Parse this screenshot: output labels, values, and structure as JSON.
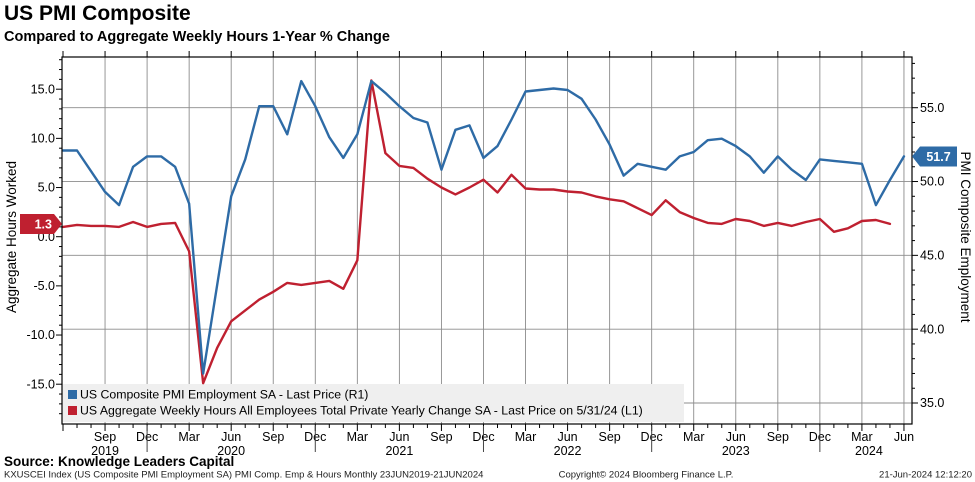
{
  "header": {
    "title": "US PMI Composite",
    "subtitle": "Compared to Aggregate Weekly Hours 1-Year % Change"
  },
  "chart_data": {
    "type": "line",
    "x_start": "Jun 2019",
    "x_interval": "monthly",
    "x_end": "Jun 2024",
    "grid": "on",
    "legend_position": "bottom-left",
    "series": [
      {
        "name": "US Composite PMI Employment SA - Last Price (R1)",
        "axis": "right",
        "color": "#2e6ba6",
        "last_price_label": "51.7",
        "values": [
          52.1,
          52.1,
          50.7,
          49.3,
          48.4,
          51.0,
          51.7,
          51.7,
          51.0,
          48.5,
          37.0,
          43.0,
          49.0,
          51.5,
          55.1,
          55.1,
          53.2,
          56.8,
          55.1,
          53.0,
          51.6,
          53.2,
          56.8,
          56.0,
          55.1,
          54.3,
          54.0,
          50.8,
          53.5,
          53.8,
          51.6,
          52.4,
          54.2,
          56.1,
          56.2,
          56.3,
          56.2,
          55.6,
          54.2,
          52.5,
          50.4,
          51.2,
          51.0,
          50.8,
          51.7,
          52.0,
          52.8,
          52.9,
          52.4,
          51.7,
          50.6,
          51.7,
          50.8,
          50.1,
          51.5,
          51.4,
          51.3,
          51.2,
          48.4,
          50.1,
          51.7
        ]
      },
      {
        "name": "US Aggregate Weekly Hours All Employees Total Private Yearly Change SA - Last Price on 5/31/24 (L1)",
        "axis": "left",
        "color": "#bf2030",
        "last_price_label": "1.3",
        "values": [
          1.0,
          1.2,
          1.1,
          1.1,
          1.0,
          1.5,
          1.0,
          1.3,
          1.4,
          -1.5,
          -14.9,
          -11.3,
          -8.6,
          -7.5,
          -6.4,
          -5.6,
          -4.7,
          -4.9,
          -4.7,
          -4.5,
          -5.3,
          -2.4,
          15.9,
          8.5,
          7.2,
          7.0,
          5.9,
          5.0,
          4.3,
          5.0,
          5.8,
          4.5,
          6.3,
          4.9,
          4.8,
          4.8,
          4.6,
          4.5,
          4.1,
          3.8,
          3.6,
          2.9,
          2.2,
          3.7,
          2.5,
          1.9,
          1.4,
          1.3,
          1.8,
          1.6,
          1.1,
          1.4,
          1.1,
          1.5,
          1.8,
          0.5,
          0.85,
          1.6,
          1.7,
          1.3
        ]
      }
    ],
    "left_axis": {
      "title": "Aggregate Hours Worked",
      "tick_labels": [
        "15.0",
        "10.0",
        "5.0",
        "0.0",
        "-5.0",
        "-10.0",
        "-15.0"
      ],
      "tick_values": [
        15,
        10,
        5,
        0,
        -5,
        -10,
        -15
      ],
      "range": [
        -19,
        18.3
      ]
    },
    "right_axis": {
      "title": "PMI Composite Employment",
      "tick_labels": [
        "55.0",
        "50.0",
        "45.0",
        "40.0",
        "35.0"
      ],
      "tick_values": [
        55,
        50,
        45,
        40,
        35
      ],
      "range": [
        33.6,
        58.4
      ]
    },
    "x_axis": {
      "quarter_tick_indices": [
        3,
        6,
        9,
        12,
        15,
        18,
        21,
        24,
        27,
        30,
        33,
        36,
        39,
        42,
        45,
        48,
        51,
        54,
        57,
        60
      ],
      "quarter_labels": [
        "Sep",
        "Dec",
        "Mar",
        "Jun",
        "Sep",
        "Dec",
        "Mar",
        "Jun",
        "Sep",
        "Dec",
        "Mar",
        "Jun",
        "Sep",
        "Dec",
        "Mar",
        "Jun",
        "Sep",
        "Dec",
        "Mar",
        "Jun"
      ],
      "year_labels": [
        {
          "label": "2019",
          "idx": 3
        },
        {
          "label": "2020",
          "idx": 12
        },
        {
          "label": "2021",
          "idx": 24
        },
        {
          "label": "2022",
          "idx": 36
        },
        {
          "label": "2023",
          "idx": 48
        },
        {
          "label": "2024",
          "idx": 57.5
        }
      ],
      "year_divider_indices": [
        6,
        18,
        30,
        42,
        54
      ]
    }
  },
  "footer": {
    "source": "Source: Knowledge Leaders Capital",
    "description": "KXUSCEI Index (US Composite PMI Employment SA) PMI Comp. Emp & Hours  Monthly 23JUN2019-21JUN2024",
    "copyright": "Copyright© 2024 Bloomberg Finance L.P.",
    "timestamp": "21-Jun-2024 12:12:20"
  },
  "colors": {
    "grid": "#8c8c8c",
    "axis": "#000000",
    "legend_bg": "#efefef",
    "blue": "#2e6ba6",
    "red": "#bf2030"
  }
}
